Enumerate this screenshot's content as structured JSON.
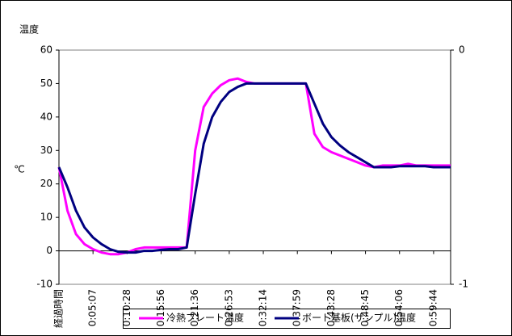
{
  "chart_data": {
    "type": "line",
    "y_title": "温度",
    "ylabel": "℃",
    "categories": [
      "経過時間",
      null,
      null,
      null,
      "0:05:07",
      null,
      null,
      null,
      "0:10:28",
      null,
      null,
      null,
      "0:15:56",
      null,
      null,
      null,
      "0:21:36",
      null,
      null,
      null,
      "0:26:53",
      null,
      null,
      null,
      "0:32:14",
      null,
      null,
      null,
      "0:37:59",
      null,
      null,
      null,
      "0:43:28",
      null,
      null,
      null,
      "0:48:45",
      null,
      null,
      null,
      "0:54:06",
      null,
      null,
      null,
      "0:59:44",
      null,
      null
    ],
    "series": [
      {
        "name": "冷熱プレート温度",
        "color": "#ff00ff",
        "values": [
          25,
          12,
          5,
          2,
          0.5,
          -0.5,
          -1,
          -1,
          -0.5,
          0.5,
          1,
          1,
          1,
          1,
          1,
          1,
          30,
          43,
          47,
          49.5,
          51,
          51.5,
          50.5,
          50,
          50,
          50,
          50,
          50,
          50,
          50,
          35,
          31,
          29.5,
          28.5,
          27.5,
          26.5,
          25.5,
          25,
          25.5,
          25.5,
          25.5,
          26,
          25.5,
          25.5,
          25.5,
          25.5,
          25.5
        ]
      },
      {
        "name": "ボート基板(サンプル)温度",
        "color": "#000080",
        "values": [
          25,
          19,
          12,
          7,
          4,
          2,
          0.5,
          -0.3,
          -0.5,
          -0.5,
          0,
          0,
          0.3,
          0.5,
          0.5,
          1,
          17,
          32,
          40,
          44.5,
          47.5,
          49,
          50,
          50,
          50,
          50,
          50,
          50,
          50,
          50,
          44,
          38,
          34,
          31.5,
          29.5,
          28,
          26.5,
          25,
          25,
          25,
          25.3,
          25.3,
          25.3,
          25.3,
          25,
          25,
          25
        ]
      }
    ],
    "ylim": [
      -10,
      60
    ],
    "yticks": [
      -10,
      0,
      10,
      20,
      30,
      40,
      50,
      60
    ],
    "y2lim": [
      -1,
      0
    ],
    "y2ticks": [
      -1,
      0
    ],
    "legend": "bottom"
  }
}
